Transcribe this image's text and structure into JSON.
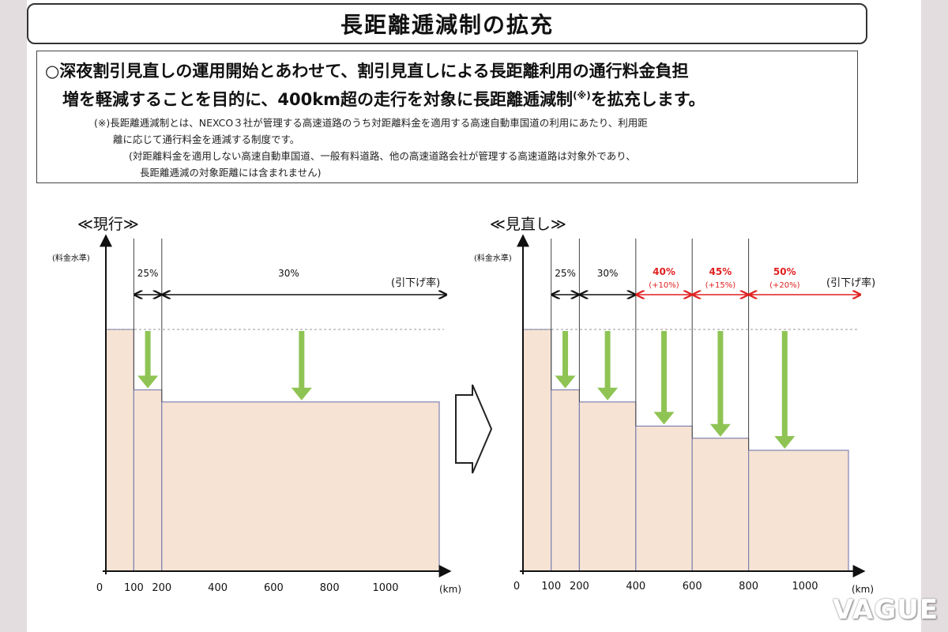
{
  "title": "長距離逓減制の拡充",
  "description": {
    "bullet": "○",
    "lead_line1": "深夜割引見直しの運用開始とあわせて、割引見直しによる長距離利用の通行料金負担",
    "lead_line2_a": "増を軽減することを目的に、400km超の走行を対象に長距離逓減制",
    "lead_line2_sup": "(※)",
    "lead_line2_b": "を拡充します。",
    "note1": "(※)長距離逓減制とは、NEXCO３社が管理する高速道路のうち対距離料金を適用する高速自動車国道の利用にあたり、利用距",
    "note2": "離に応じて通行料金を逓減する制度です。",
    "note3": "(対距離料金を適用しない高速自動車国道、一般有料道路、他の高速道路会社が管理する高速道路は対象外であり、",
    "note4": "長距離逓減の対象距離には含まれません)"
  },
  "chart_data": [
    {
      "type": "bar",
      "title": "≪現行≫",
      "ylabel": "(料金水準)",
      "xlabel": "(km)",
      "legend_label": "(引下げ率)",
      "x_ticks": [
        "0",
        "100",
        "200",
        "400",
        "600",
        "800",
        "1000"
      ],
      "xlim": [
        0,
        1200
      ],
      "ylim": [
        0,
        1.0
      ],
      "segments": [
        {
          "from": 0,
          "to": 100,
          "level": 1.0,
          "rate": ""
        },
        {
          "from": 100,
          "to": 200,
          "level": 0.75,
          "rate": "25%"
        },
        {
          "from": 200,
          "to": 1200,
          "level": 0.7,
          "rate": "30%"
        }
      ]
    },
    {
      "type": "bar",
      "title": "≪見直し≫",
      "ylabel": "(料金水準)",
      "xlabel": "(km)",
      "legend_label": "(引下げ率)",
      "x_ticks": [
        "0",
        "100",
        "200",
        "400",
        "600",
        "800",
        "1000"
      ],
      "xlim": [
        0,
        1200
      ],
      "ylim": [
        0,
        1.0
      ],
      "segments": [
        {
          "from": 0,
          "to": 100,
          "level": 1.0,
          "rate": "",
          "increase": ""
        },
        {
          "from": 100,
          "to": 200,
          "level": 0.75,
          "rate": "25%",
          "increase": ""
        },
        {
          "from": 200,
          "to": 400,
          "level": 0.7,
          "rate": "30%",
          "increase": ""
        },
        {
          "from": 400,
          "to": 600,
          "level": 0.6,
          "rate": "40%",
          "increase": "(+10%)"
        },
        {
          "from": 600,
          "to": 800,
          "level": 0.55,
          "rate": "45%",
          "increase": "(+15%)"
        },
        {
          "from": 800,
          "to": 1200,
          "level": 0.5,
          "rate": "50%",
          "increase": "(+20%)"
        }
      ]
    }
  ],
  "colors": {
    "bar_fill": "#f7e3d4",
    "bar_stroke": "#7f83b0",
    "arrow_green": "#8fc454",
    "new_red": "#e02020",
    "axis": "#111111"
  },
  "watermark": "VAGUE"
}
